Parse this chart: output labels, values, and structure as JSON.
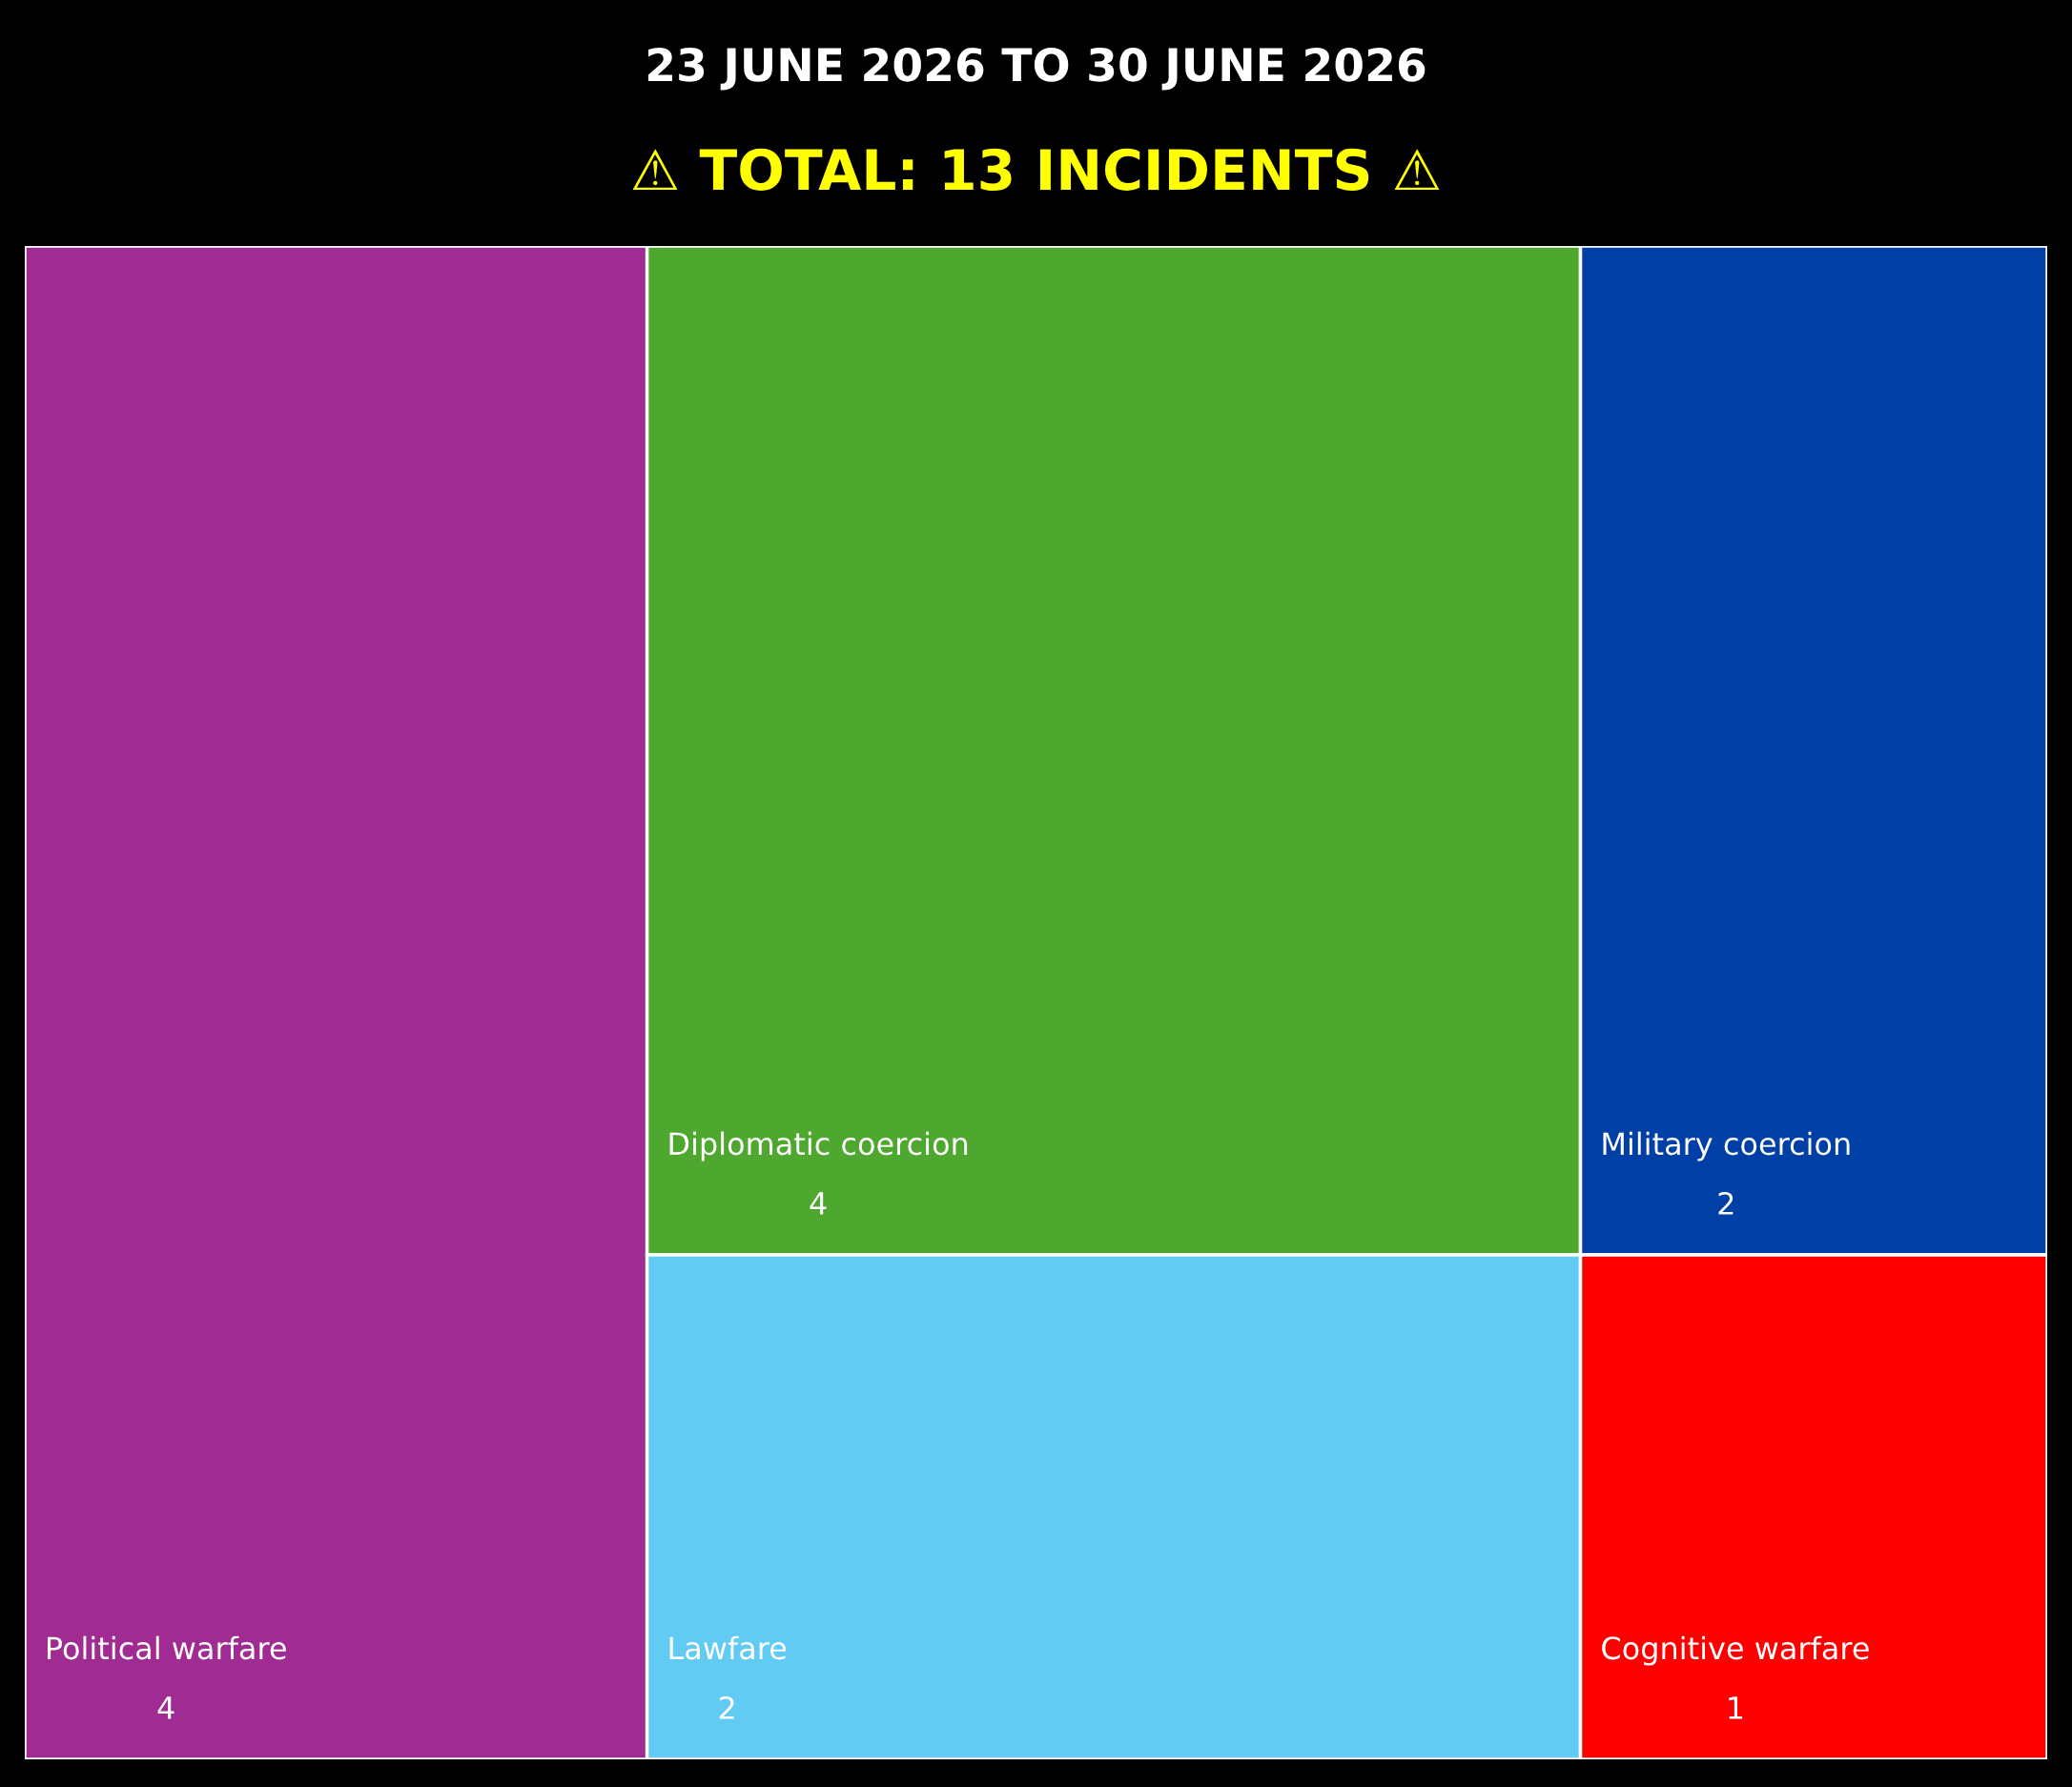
{
  "chart_data": {
    "type": "other",
    "title": "23 JUNE 2026 TO 30 JUNE 2026",
    "subtitle": "⚠ TOTAL: 13 INCIDENTS ⚠",
    "categories": [
      "Political warfare",
      "Diplomatic coercion",
      "Lawfare",
      "Military coercion",
      "Cognitive warfare"
    ],
    "values": [
      4,
      4,
      2,
      2,
      1
    ],
    "colors": [
      "#a02b93",
      "#4ea72e",
      "#61cbf3",
      "#003fa6",
      "#ff0000"
    ],
    "data_labels": true
  }
}
